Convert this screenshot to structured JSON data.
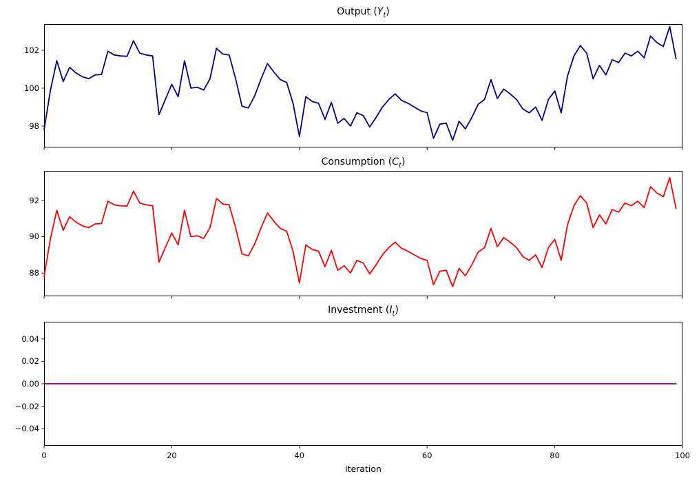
{
  "figure": {
    "xlabel": "iteration",
    "xlim": [
      0,
      100
    ],
    "x_ticks": [
      0,
      20,
      40,
      60,
      80,
      100
    ],
    "x_tick_labels": [
      "0",
      "20",
      "40",
      "60",
      "80",
      "100"
    ],
    "background": "#ffffff",
    "axis_color": "#000000"
  },
  "chart_data": [
    {
      "type": "line",
      "title": "Output (Y_t)",
      "title_parts": {
        "prefix": "Output (",
        "var": "Y",
        "sub": "t",
        "suffix": ")"
      },
      "color": "#00008b",
      "x_start": 0,
      "x_step": 1,
      "ylim": [
        96.87,
        103.38
      ],
      "y_ticks": [
        98,
        100,
        102
      ],
      "y_tick_labels": [
        "98",
        "100",
        "102"
      ],
      "grid": false,
      "values": [
        97.8,
        99.9,
        101.45,
        100.35,
        101.1,
        100.8,
        100.6,
        100.5,
        100.7,
        100.72,
        101.95,
        101.75,
        101.7,
        101.68,
        102.5,
        101.85,
        101.75,
        101.7,
        98.6,
        99.4,
        100.2,
        99.55,
        101.45,
        100.0,
        100.05,
        99.9,
        100.5,
        102.1,
        101.8,
        101.75,
        100.5,
        99.05,
        98.95,
        99.6,
        100.5,
        101.3,
        100.85,
        100.45,
        100.3,
        99.2,
        97.45,
        99.55,
        99.3,
        99.2,
        98.35,
        99.25,
        98.15,
        98.4,
        98.0,
        98.7,
        98.55,
        97.95,
        98.45,
        99.0,
        99.4,
        99.7,
        99.35,
        99.2,
        99.0,
        98.8,
        98.7,
        97.35,
        98.1,
        98.15,
        97.25,
        98.25,
        97.85,
        98.45,
        99.15,
        99.4,
        100.45,
        99.45,
        99.95,
        99.7,
        99.4,
        98.9,
        98.7,
        99.0,
        98.3,
        99.4,
        99.85,
        98.7,
        100.65,
        101.7,
        102.25,
        101.85,
        100.5,
        101.2,
        100.7,
        101.5,
        101.35,
        101.85,
        101.7,
        101.95,
        101.6,
        102.75,
        102.4,
        102.2,
        103.25,
        101.55
      ]
    },
    {
      "type": "line",
      "title": "Consumption (C_t)",
      "title_parts": {
        "prefix": "Consumption (",
        "var": "C",
        "sub": "t",
        "suffix": ")"
      },
      "color": "#ff0000",
      "x_start": 0,
      "x_step": 1,
      "ylim": [
        86.72,
        93.62
      ],
      "y_ticks": [
        88,
        90,
        92
      ],
      "y_tick_labels": [
        "88",
        "90",
        "92"
      ],
      "grid": false,
      "values": [
        87.8,
        89.9,
        91.45,
        90.35,
        91.1,
        90.8,
        90.6,
        90.5,
        90.7,
        90.72,
        91.95,
        91.75,
        91.7,
        91.68,
        92.5,
        91.85,
        91.75,
        91.7,
        88.6,
        89.4,
        90.2,
        89.55,
        91.45,
        90.0,
        90.05,
        89.9,
        90.5,
        92.1,
        91.8,
        91.75,
        90.5,
        89.05,
        88.95,
        89.6,
        90.5,
        91.3,
        90.85,
        90.45,
        90.3,
        89.2,
        87.45,
        89.55,
        89.3,
        89.2,
        88.35,
        89.25,
        88.15,
        88.4,
        88.0,
        88.7,
        88.55,
        87.95,
        88.45,
        89.0,
        89.4,
        89.7,
        89.35,
        89.2,
        89.0,
        88.8,
        88.7,
        87.35,
        88.1,
        88.15,
        87.25,
        88.25,
        87.85,
        88.45,
        89.15,
        89.4,
        90.45,
        89.45,
        89.95,
        89.7,
        89.4,
        88.9,
        88.7,
        89.0,
        88.3,
        89.4,
        89.85,
        88.7,
        90.65,
        91.7,
        92.25,
        91.85,
        90.5,
        91.2,
        90.7,
        91.5,
        91.35,
        91.85,
        91.7,
        91.95,
        91.6,
        92.75,
        92.4,
        92.2,
        93.25,
        91.55
      ]
    },
    {
      "type": "line",
      "title": "Investment (I_t)",
      "title_parts": {
        "prefix": "Investment (",
        "var": "I",
        "sub": "t",
        "suffix": ")"
      },
      "color": "#800080",
      "x_start": 0,
      "x_step": 1,
      "ylim": [
        -0.0553,
        0.0553
      ],
      "y_ticks": [
        0.04,
        0.02,
        0.0,
        -0.02,
        -0.04
      ],
      "y_tick_labels": [
        "0.04",
        "0.02",
        "0.00",
        "−0.02",
        "−0.04"
      ],
      "grid": false,
      "values": [
        0,
        0,
        0,
        0,
        0,
        0,
        0,
        0,
        0,
        0,
        0,
        0,
        0,
        0,
        0,
        0,
        0,
        0,
        0,
        0,
        0,
        0,
        0,
        0,
        0,
        0,
        0,
        0,
        0,
        0,
        0,
        0,
        0,
        0,
        0,
        0,
        0,
        0,
        0,
        0,
        0,
        0,
        0,
        0,
        0,
        0,
        0,
        0,
        0,
        0,
        0,
        0,
        0,
        0,
        0,
        0,
        0,
        0,
        0,
        0,
        0,
        0,
        0,
        0,
        0,
        0,
        0,
        0,
        0,
        0,
        0,
        0,
        0,
        0,
        0,
        0,
        0,
        0,
        0,
        0,
        0,
        0,
        0,
        0,
        0,
        0,
        0,
        0,
        0,
        0,
        0,
        0,
        0,
        0,
        0,
        0,
        0,
        0,
        0,
        0
      ]
    }
  ]
}
